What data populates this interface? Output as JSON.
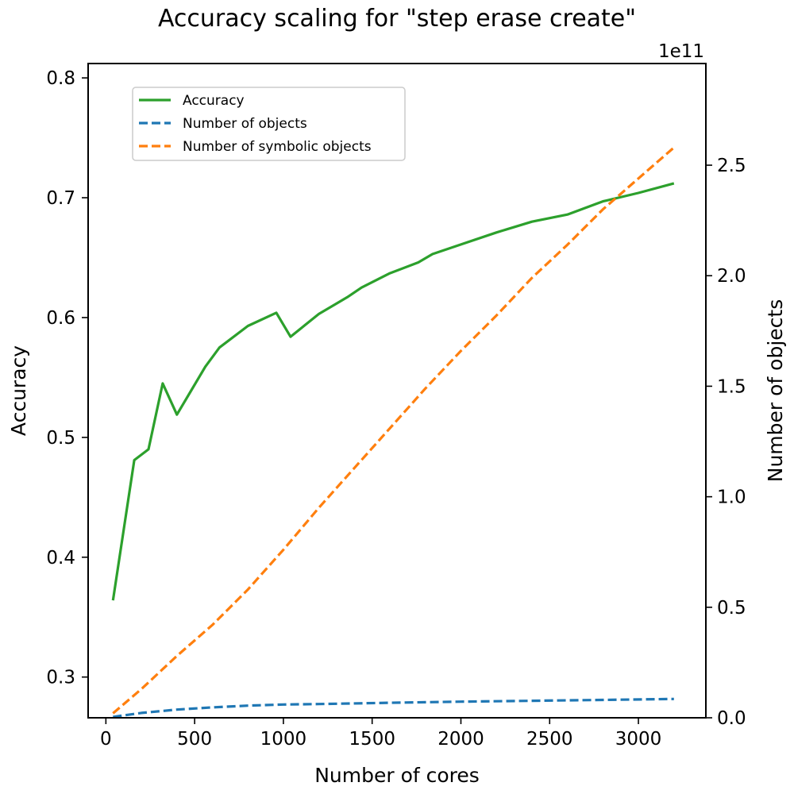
{
  "chart_data": {
    "type": "line",
    "title": "Accuracy scaling for \"step erase create\"",
    "xlabel": "Number of cores",
    "ylabel_left": "Accuracy",
    "ylabel_right": "Number of objects",
    "right_axis_offset_text": "1e11",
    "xlim": [
      -100,
      3380
    ],
    "ylim_left": [
      0.266,
      0.812
    ],
    "ylim_right": [
      0,
      2.96
    ],
    "xticks": [
      0,
      500,
      1000,
      1500,
      2000,
      2500,
      3000
    ],
    "yticks_left": [
      0.3,
      0.4,
      0.5,
      0.6,
      0.7,
      0.8
    ],
    "yticks_right": [
      0.0,
      0.5,
      1.0,
      1.5,
      2.0,
      2.5
    ],
    "grid": false,
    "legend_position": "upper-left",
    "series": [
      {
        "name": "Accuracy",
        "axis": "left",
        "color": "#2ca02c",
        "style": "solid",
        "x": [
          40,
          160,
          240,
          320,
          400,
          480,
          560,
          640,
          800,
          960,
          1040,
          1200,
          1360,
          1440,
          1600,
          1760,
          1840,
          2000,
          2200,
          2400,
          2600,
          2800,
          3000,
          3200
        ],
        "y": [
          0.364,
          0.481,
          0.49,
          0.545,
          0.519,
          0.539,
          0.559,
          0.575,
          0.593,
          0.604,
          0.584,
          0.603,
          0.617,
          0.625,
          0.637,
          0.646,
          0.653,
          0.661,
          0.671,
          0.68,
          0.686,
          0.697,
          0.704,
          0.712
        ]
      },
      {
        "name": "Number of objects",
        "axis": "right",
        "color": "#1f77b4",
        "style": "dashed",
        "x": [
          40,
          200,
          400,
          600,
          800,
          1000,
          1200,
          1600,
          2000,
          2400,
          2800,
          3200
        ],
        "y": [
          0.004,
          0.022,
          0.037,
          0.047,
          0.055,
          0.06,
          0.062,
          0.068,
          0.073,
          0.077,
          0.081,
          0.085
        ]
      },
      {
        "name": "Number of symbolic objects",
        "axis": "right",
        "color": "#ff7f0e",
        "style": "dashed",
        "x": [
          40,
          200,
          400,
          600,
          800,
          1000,
          1200,
          1400,
          1600,
          1800,
          2000,
          2200,
          2400,
          2600,
          2800,
          3000,
          3200
        ],
        "y": [
          0.02,
          0.13,
          0.28,
          0.42,
          0.58,
          0.76,
          0.95,
          1.13,
          1.31,
          1.49,
          1.66,
          1.82,
          1.99,
          2.14,
          2.3,
          2.44,
          2.58
        ]
      }
    ]
  }
}
